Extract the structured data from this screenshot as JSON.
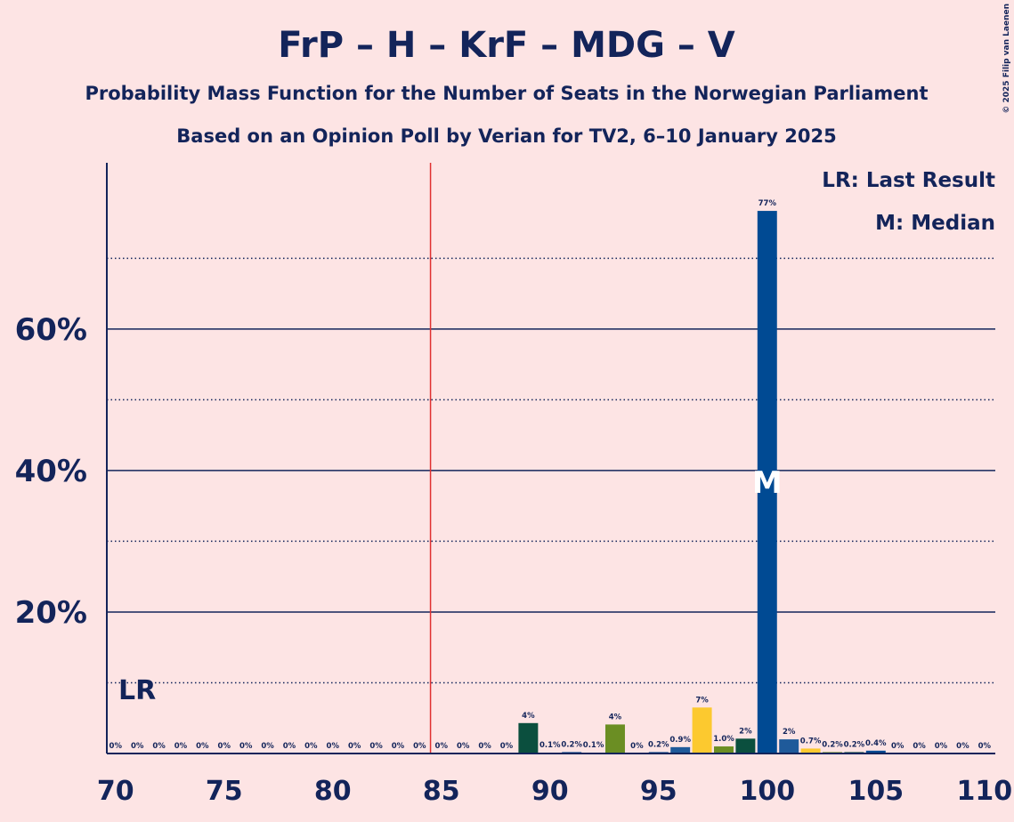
{
  "chart_data": {
    "type": "bar",
    "title": "FrP – H – KrF – MDG – V",
    "subtitle": "Probability Mass Function for the Number of Seats in the Norwegian Parliament",
    "subtitle2": "Based on an Opinion Poll by Verian for TV2, 6–10 January 2025",
    "copyright": "© 2025 Filip van Laenen",
    "legend": [
      "LR: Last Result",
      "M: Median"
    ],
    "last_result": 71,
    "last_result_label": "LR",
    "median": 100,
    "median_label": "M",
    "majority_line": 84.5,
    "x": [
      70,
      71,
      72,
      73,
      74,
      75,
      76,
      77,
      78,
      79,
      80,
      81,
      82,
      83,
      84,
      85,
      86,
      87,
      88,
      89,
      90,
      91,
      92,
      93,
      94,
      95,
      96,
      97,
      98,
      99,
      100,
      101,
      102,
      103,
      104,
      105,
      106,
      107,
      108,
      109,
      110
    ],
    "values": [
      0,
      0,
      0,
      0,
      0,
      0,
      0,
      0,
      0,
      0,
      0,
      0,
      0,
      0,
      0,
      0,
      0,
      0,
      0,
      4.3,
      0.1,
      0.2,
      0.1,
      4.1,
      0,
      0.2,
      0.9,
      6.5,
      1.0,
      2.1,
      76.7,
      2.0,
      0.7,
      0.2,
      0.2,
      0.4,
      0,
      0,
      0,
      0,
      0
    ],
    "value_labels": [
      "0%",
      "0%",
      "0%",
      "0%",
      "0%",
      "0%",
      "0%",
      "0%",
      "0%",
      "0%",
      "0%",
      "0%",
      "0%",
      "0%",
      "0%",
      "0%",
      "0%",
      "0%",
      "0%",
      "4%",
      "0.1%",
      "0.2%",
      "0.1%",
      "4%",
      "0%",
      "0.2%",
      "0.9%",
      "7%",
      "1.0%",
      "2%",
      "77%",
      "2%",
      "0.7%",
      "0.2%",
      "0.2%",
      "0.4%",
      "0%",
      "0%",
      "0%",
      "0%",
      "0%"
    ],
    "colors": [
      "#004a93",
      "#004a93",
      "#004a93",
      "#004a93",
      "#004a93",
      "#004a93",
      "#004a93",
      "#004a93",
      "#004a93",
      "#004a93",
      "#004a93",
      "#004a93",
      "#004a93",
      "#004a93",
      "#004a93",
      "#004a93",
      "#004a93",
      "#004a93",
      "#004a93",
      "#0b4f3e",
      "#0b4f3e",
      "#004a93",
      "#f7c72a",
      "#6b8e23",
      "#6b8e23",
      "#004a93",
      "#1f5a9a",
      "#fcc92f",
      "#6b8e23",
      "#0b4f3e",
      "#004a93",
      "#1f5a9a",
      "#fcc92f",
      "#6b8e23",
      "#0b4f3e",
      "#004a93",
      "#004a93",
      "#004a93",
      "#004a93",
      "#004a93",
      "#004a93"
    ],
    "xlim": [
      69.6,
      110.5
    ],
    "xticks": [
      70,
      75,
      80,
      85,
      90,
      95,
      100,
      105,
      110
    ],
    "ylim": [
      0,
      83.5
    ],
    "yticks": [
      {
        "value": 20,
        "label": "20%"
      },
      {
        "value": 40,
        "label": "40%"
      },
      {
        "value": 60,
        "label": "60%"
      }
    ],
    "minor_yticks": [
      10,
      30,
      50,
      70
    ],
    "grid": true
  }
}
